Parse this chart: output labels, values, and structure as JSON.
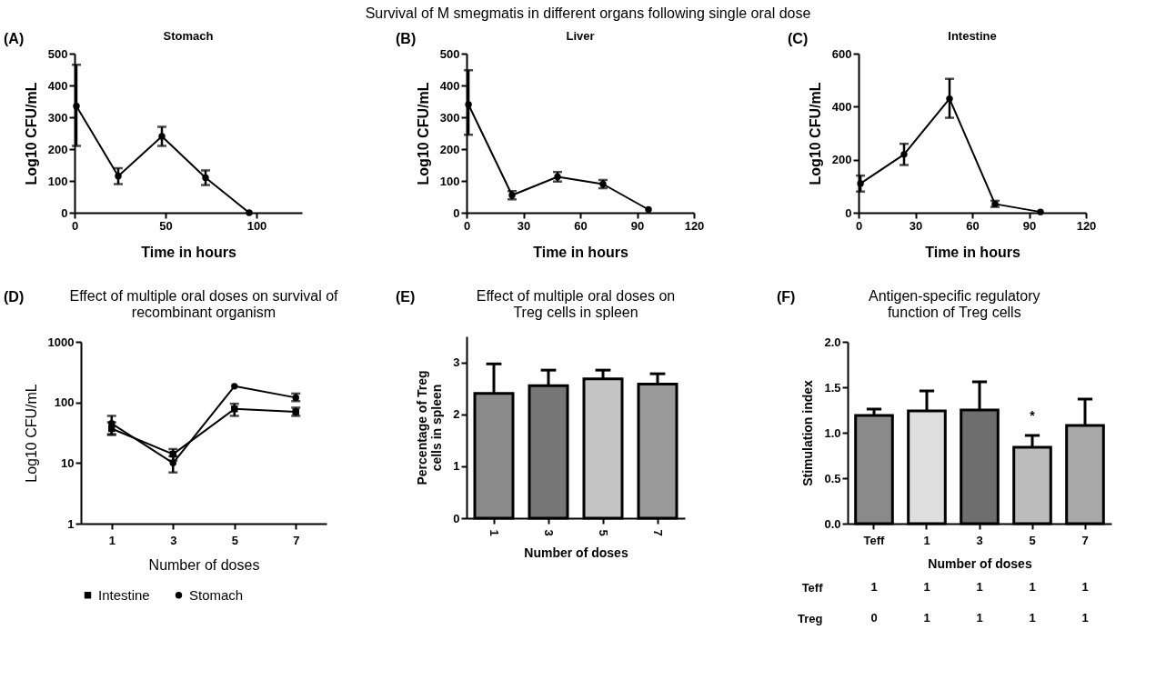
{
  "chart_data": [
    {
      "type": "line",
      "title": "Stomach",
      "xlabel": "Time in hours",
      "ylabel": "Log10 CFU/mL",
      "marker": "circle",
      "xlim": [
        0,
        125
      ],
      "xticks": [
        0,
        50,
        100
      ],
      "ylim": [
        0,
        500
      ],
      "yticks": [
        0,
        100,
        200,
        300,
        400,
        500
      ],
      "series": [
        {
          "color": "#000000",
          "x": [
            1,
            24,
            48,
            72,
            96
          ],
          "values": [
            335,
            115,
            240,
            110,
            0
          ],
          "errors": [
            [
              210,
              465
            ],
            [
              90,
              140
            ],
            [
              210,
              270
            ],
            [
              87,
              133
            ],
            null
          ]
        }
      ],
      "annotations": [
        "Survival of M smegmatis in different organs following single oral dose",
        "(A)"
      ]
    },
    {
      "type": "line",
      "title": "Liver",
      "xlabel": "Time in hours",
      "ylabel": "Log10 CFU/mL",
      "marker": "circle",
      "xlim": [
        0,
        120
      ],
      "xticks": [
        0,
        30,
        60,
        90,
        120
      ],
      "ylim": [
        0,
        500
      ],
      "yticks": [
        0,
        100,
        200,
        300,
        400,
        500
      ],
      "series": [
        {
          "color": "#000000",
          "x": [
            1,
            24,
            48,
            72,
            96
          ],
          "values": [
            340,
            55,
            113,
            90,
            10
          ],
          "errors": [
            [
              245,
              448
            ],
            [
              42,
              68
            ],
            [
              98,
              128
            ],
            [
              77,
              103
            ],
            null
          ]
        }
      ],
      "annotations": [
        "(B)"
      ]
    },
    {
      "type": "line",
      "title": "Intestine",
      "xlabel": "Time in hours",
      "ylabel": "Log10 CFU/mL",
      "marker": "circle",
      "xlim": [
        0,
        120
      ],
      "xticks": [
        0,
        30,
        60,
        90,
        120
      ],
      "ylim": [
        0,
        600
      ],
      "yticks": [
        0,
        200,
        400,
        600
      ],
      "series": [
        {
          "color": "#000000",
          "x": [
            1,
            24,
            48,
            72,
            96
          ],
          "values": [
            110,
            220,
            430,
            33,
            3
          ],
          "errors": [
            [
              80,
              140
            ],
            [
              180,
              260
            ],
            [
              358,
              505
            ],
            [
              22,
              45
            ],
            null
          ]
        }
      ],
      "annotations": [
        "(C)"
      ]
    },
    {
      "type": "line",
      "title": "Effect of multiple oral doses on survival of recombinant organism",
      "xlabel": "Number of doses",
      "ylabel": "Log10 CFU/mL",
      "categories": [
        "1",
        "3",
        "5",
        "7"
      ],
      "log": "y",
      "ylim": [
        1,
        1000
      ],
      "yticks": [
        1,
        10,
        100,
        1000
      ],
      "legend": "bottom",
      "series": [
        {
          "name": "Intestine",
          "color": "#000000",
          "marker": "square",
          "values": [
            37,
            14,
            78,
            70
          ],
          "errors": [
            [
              29,
              47
            ],
            [
              11,
              17
            ],
            [
              60,
              95
            ],
            [
              60,
              82
            ]
          ]
        },
        {
          "name": "Stomach",
          "color": "#000000",
          "marker": "circle",
          "values": [
            45,
            10,
            185,
            120
          ],
          "errors": [
            [
              30,
              60
            ],
            [
              7,
              13
            ],
            null,
            [
              105,
              140
            ]
          ]
        }
      ],
      "annotations": [
        "(D)"
      ]
    },
    {
      "type": "bar",
      "title": "Effect of multiple oral doses on Treg cells in spleen",
      "xlabel": "Number of doses",
      "ylabel": "Percentage of Treg cells in spleen",
      "categories": [
        "1",
        "3",
        "5",
        "7"
      ],
      "ylim": [
        0,
        3.5
      ],
      "yticks": [
        0,
        1,
        2,
        3
      ],
      "values": [
        2.4,
        2.55,
        2.68,
        2.58
      ],
      "colors": [
        "#8a8a8a",
        "#767676",
        "#c4c4c4",
        "#9a9a9a"
      ],
      "errors": [
        [
          2.4,
          2.97
        ],
        [
          2.55,
          2.85
        ],
        [
          2.68,
          2.85
        ],
        [
          2.58,
          2.78
        ]
      ],
      "annotations": [
        "(E)"
      ]
    },
    {
      "type": "bar",
      "title": "Antigen-specific regulatory function of Treg cells",
      "xlabel": "Number of doses",
      "ylabel": "Stimulation index",
      "categories": [
        "Teff",
        "1",
        "3",
        "5",
        "7"
      ],
      "ylim": [
        0,
        2
      ],
      "yticks": [
        {
          "value": 0,
          "label": "0.0"
        },
        {
          "value": 0.5,
          "label": "0.5"
        },
        {
          "value": 1,
          "label": "1.0"
        },
        {
          "value": 1.5,
          "label": "1.5"
        },
        {
          "value": 2,
          "label": "2.0"
        }
      ],
      "values": [
        1.19,
        1.24,
        1.25,
        0.84,
        1.08
      ],
      "colors": [
        "#8a8a8a",
        "#dedede",
        "#6e6e6e",
        "#bcbcbc",
        "#a8a8a8"
      ],
      "errors": [
        [
          1.19,
          1.26
        ],
        [
          1.24,
          1.46
        ],
        [
          1.25,
          1.56
        ],
        [
          0.84,
          0.97
        ],
        [
          1.08,
          1.37
        ]
      ],
      "annotations": [
        "(F)",
        {
          "text": "*",
          "x": "5",
          "y": 0.97
        },
        "Teff",
        "1",
        "1",
        "1",
        "1",
        "1",
        "Treg",
        "0",
        "1",
        "1",
        "1",
        "1"
      ]
    }
  ]
}
